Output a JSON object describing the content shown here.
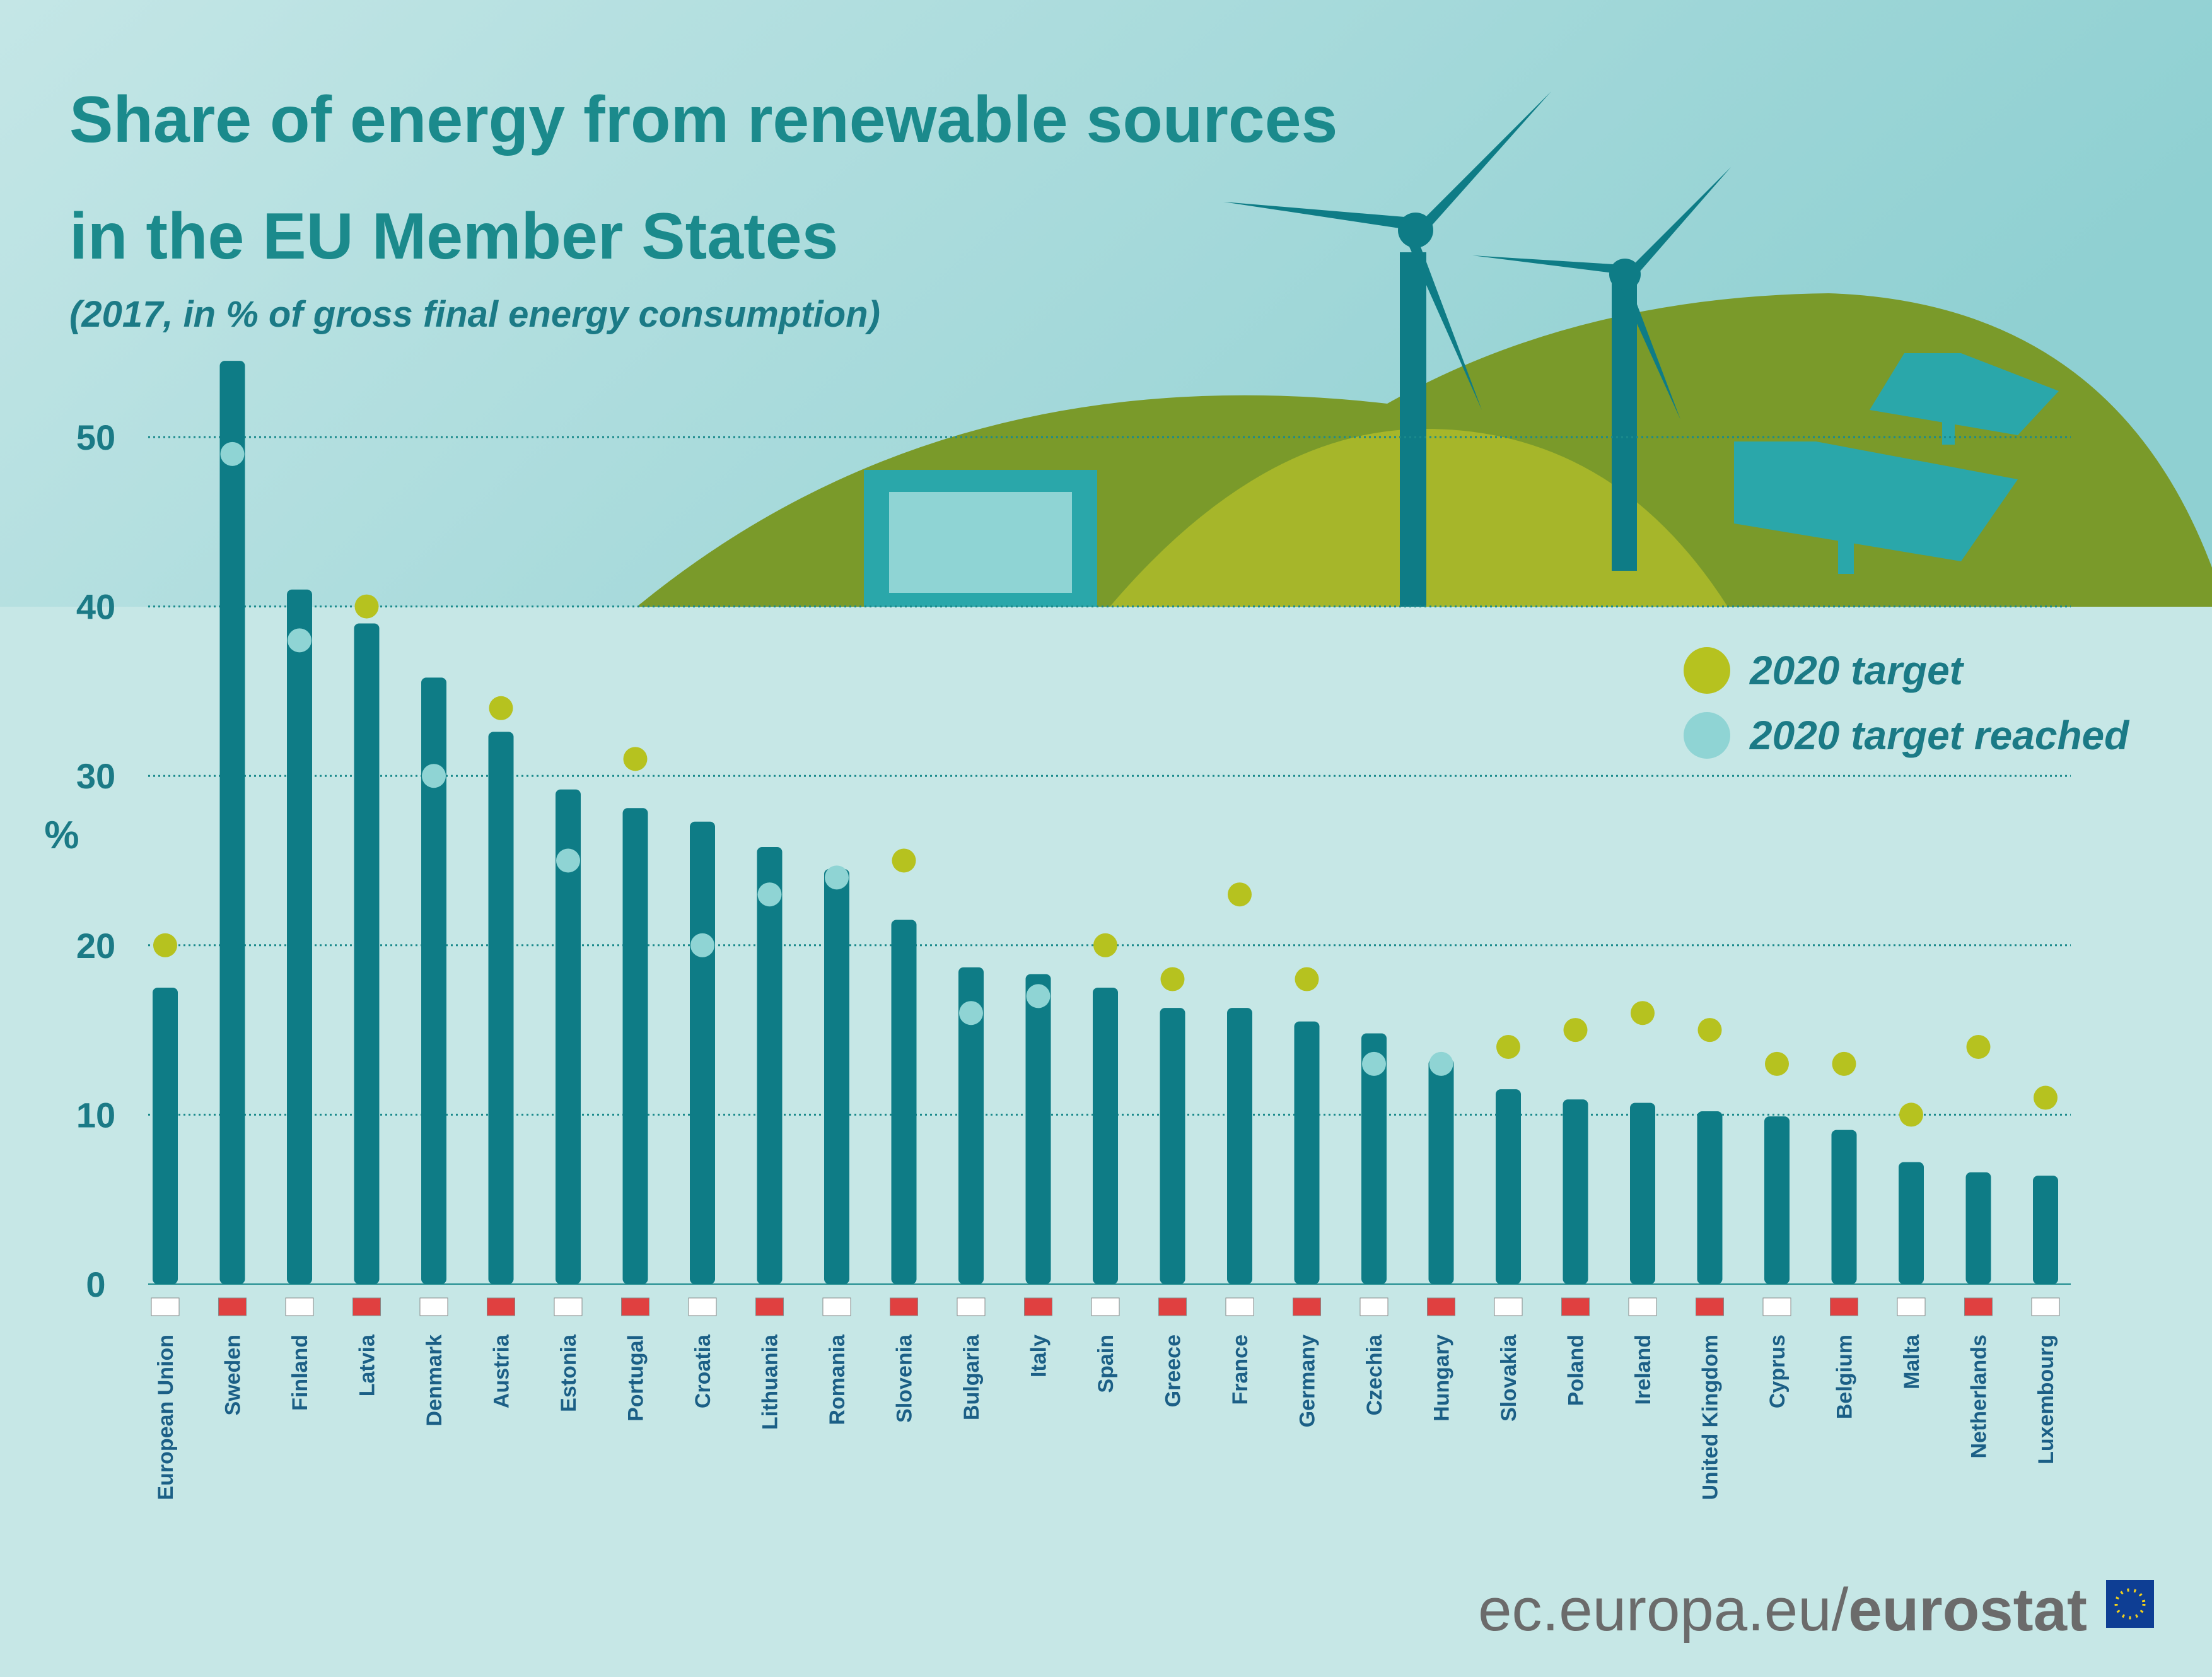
{
  "chart_data": {
    "type": "bar",
    "title": [
      "Share of energy from renewable sources",
      "in the EU Member States"
    ],
    "subtitle": "(2017, in % of gross final energy consumption)",
    "y_label": "%",
    "categories": [
      "European Union",
      "Sweden",
      "Finland",
      "Latvia",
      "Denmark",
      "Austria",
      "Estonia",
      "Portugal",
      "Croatia",
      "Lithuania",
      "Romania",
      "Slovenia",
      "Bulgaria",
      "Italy",
      "Spain",
      "Greece",
      "France",
      "Germany",
      "Czechia",
      "Hungary",
      "Slovakia",
      "Poland",
      "Ireland",
      "United Kingdom",
      "Cyprus",
      "Belgium",
      "Malta",
      "Netherlands",
      "Luxembourg"
    ],
    "values": [
      17.5,
      54.5,
      41.0,
      39.0,
      35.8,
      32.6,
      29.2,
      28.1,
      27.3,
      25.8,
      24.5,
      21.5,
      18.7,
      18.3,
      17.5,
      16.3,
      16.3,
      15.5,
      14.8,
      13.3,
      11.5,
      10.9,
      10.7,
      10.2,
      9.9,
      9.1,
      7.2,
      6.6,
      6.4
    ],
    "color": "#0e7c86",
    "targets": [
      20,
      49,
      38,
      40,
      30,
      34,
      25,
      31,
      20,
      23,
      24,
      25,
      16,
      17,
      20,
      18,
      23,
      18,
      13,
      13,
      14,
      15,
      16,
      15,
      13,
      13,
      10,
      14,
      11
    ],
    "legend": [
      {
        "name": "2020 target",
        "color": "#b6c21f"
      },
      {
        "name": "2020 target reached",
        "color": "#8fd4d4"
      }
    ],
    "ylim": [
      0,
      55
    ],
    "yticks": [
      0,
      10,
      20,
      30,
      40,
      50
    ],
    "grid": true
  },
  "footer": [
    "ec.europa.eu/",
    "eurostat"
  ]
}
